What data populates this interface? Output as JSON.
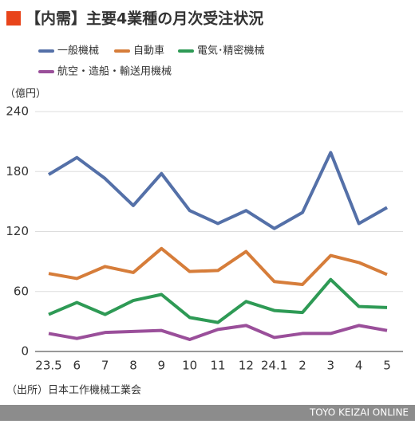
{
  "chart_data": {
    "type": "line",
    "title": "【内需】主要4業種の月次受注状況",
    "unit_label": "（億円）",
    "source": "（出所）日本工作機械工業会",
    "footer": "TOYO KEIZAI ONLINE",
    "categories": [
      "23.5",
      "6",
      "7",
      "8",
      "9",
      "10",
      "11",
      "12",
      "24.1",
      "2",
      "3",
      "4",
      "5"
    ],
    "series": [
      {
        "name": "一般機械",
        "color": "#5470a8",
        "values": [
          177,
          194,
          173,
          146,
          178,
          141,
          128,
          141,
          123,
          139,
          199,
          128,
          144
        ]
      },
      {
        "name": "自動車",
        "color": "#d67d3a",
        "values": [
          78,
          73,
          85,
          79,
          103,
          80,
          81,
          100,
          70,
          67,
          96,
          89,
          77
        ]
      },
      {
        "name": "電気･精密機械",
        "color": "#2e9a55",
        "values": [
          37,
          49,
          37,
          51,
          57,
          34,
          29,
          50,
          41,
          39,
          72,
          45,
          44
        ]
      },
      {
        "name": "航空・造船・輸送用機械",
        "color": "#9a4f9a",
        "values": [
          18,
          13,
          19,
          20,
          21,
          12,
          22,
          26,
          14,
          18,
          18,
          26,
          21
        ]
      }
    ],
    "ylim": [
      0,
      240
    ],
    "yticks": [
      0,
      60,
      120,
      180,
      240
    ],
    "grid": true
  }
}
